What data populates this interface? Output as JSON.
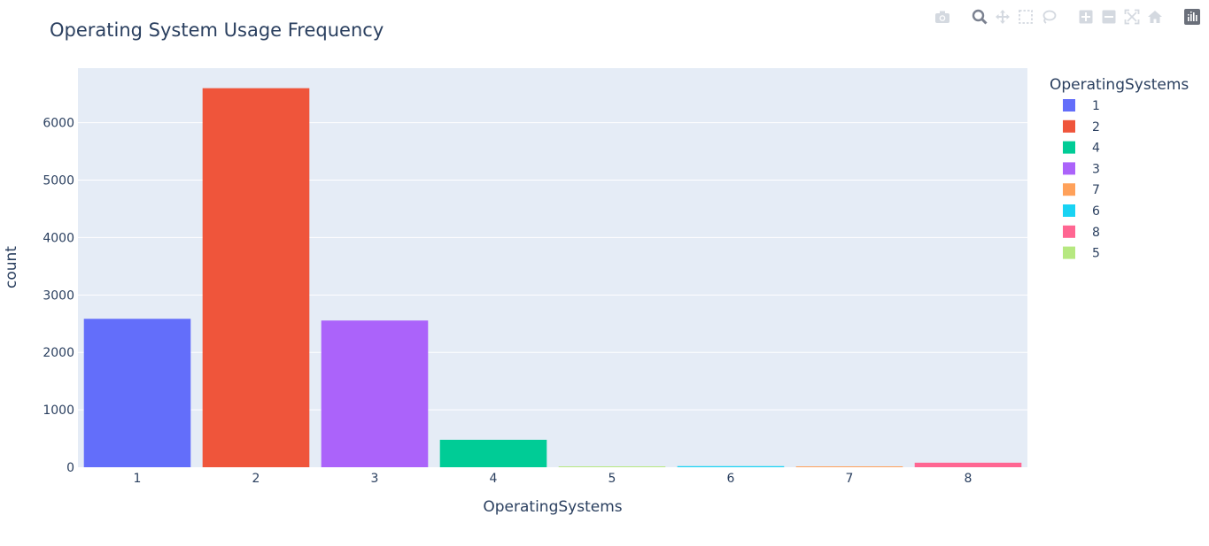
{
  "chart_data": {
    "type": "bar",
    "title": "Operating System Usage Frequency",
    "xlabel": "OperatingSystems",
    "ylabel": "count",
    "categories": [
      "1",
      "2",
      "3",
      "4",
      "5",
      "6",
      "7",
      "8"
    ],
    "values": [
      2585,
      6601,
      2555,
      478,
      6,
      19,
      7,
      79
    ],
    "colors": [
      "#636efa",
      "#ef553b",
      "#ab63fa",
      "#00cc96",
      "#b6e880",
      "#19d3f3",
      "#ffa15a",
      "#ff6692"
    ],
    "ylim": [
      0,
      6950
    ],
    "yticks": [
      0,
      1000,
      2000,
      3000,
      4000,
      5000,
      6000
    ],
    "grid": true,
    "legend": {
      "title": "OperatingSystems",
      "placement": "right",
      "items": [
        {
          "label": "1",
          "color": "#636efa"
        },
        {
          "label": "2",
          "color": "#ef553b"
        },
        {
          "label": "4",
          "color": "#00cc96"
        },
        {
          "label": "3",
          "color": "#ab63fa"
        },
        {
          "label": "7",
          "color": "#ffa15a"
        },
        {
          "label": "6",
          "color": "#19d3f3"
        },
        {
          "label": "8",
          "color": "#ff6692"
        },
        {
          "label": "5",
          "color": "#b6e880"
        }
      ]
    }
  },
  "modebar": {
    "buttons": [
      "camera-icon",
      "zoom-icon",
      "pan-icon",
      "box-select-icon",
      "lasso-select-icon",
      "zoom-in-icon",
      "zoom-out-icon",
      "autoscale-icon",
      "reset-axes-icon",
      "plotly-logo-icon"
    ]
  }
}
